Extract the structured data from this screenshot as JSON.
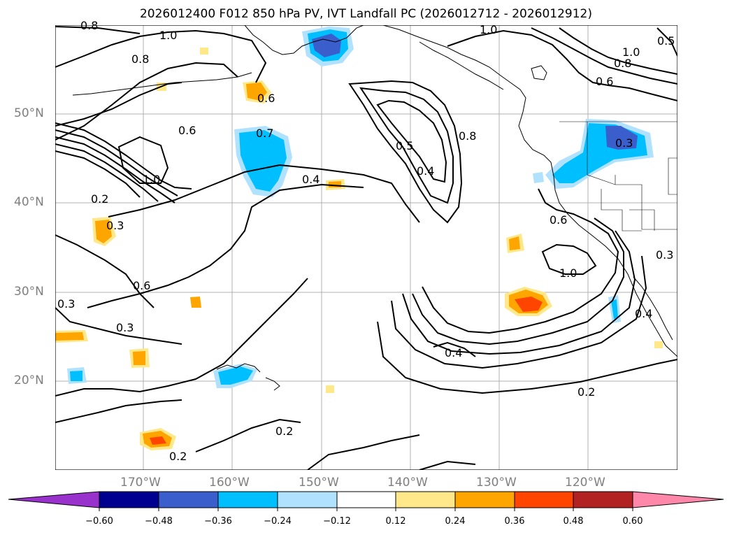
{
  "title": "2026012400 F012 850 hPa PV, IVT Landfall PC (2026012712 - 2026012912)",
  "lat_labels": [
    "50°N",
    "40°N",
    "30°N",
    "20°N"
  ],
  "lon_labels": [
    "170°W",
    "160°W",
    "150°W",
    "140°W",
    "130°W",
    "120°W"
  ],
  "colorbar": {
    "ticks": [
      "−0.60",
      "−0.48",
      "−0.36",
      "−0.24",
      "−0.12",
      "0.12",
      "0.24",
      "0.36",
      "0.48",
      "0.60"
    ],
    "colors": [
      "#9932cc",
      "#000090",
      "#3a5fcd",
      "#00bfff",
      "#b0e2ff",
      "#ffffff",
      "#ffe88a",
      "#ffa500",
      "#ff4500",
      "#b22222",
      "#ff88aa"
    ]
  },
  "contour_labels": [
    "0.8",
    "1.0",
    "0.8",
    "0.6",
    "0.6",
    "0.7",
    "0.4",
    "0.5",
    "0.4",
    "0.8",
    "1.0",
    "1.0",
    "0.8",
    "0.6",
    "0.5",
    "1.0",
    "0.2",
    "0.3",
    "0.3",
    "0.6",
    "0.3",
    "0.3",
    "0.4",
    "0.6",
    "1.0",
    "0.3",
    "0.4",
    "0.2",
    "0.2",
    "0.2"
  ]
}
